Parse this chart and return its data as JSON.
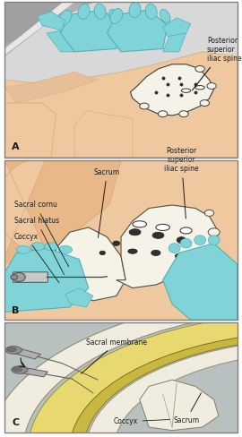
{
  "figsize": [
    2.7,
    4.88
  ],
  "dpi": 100,
  "panel_A": {
    "bg_gray_dark": "#a0a0a0",
    "bg_gray_light": "#d8d8d8",
    "bg_gray_mid": "#c0c0c0",
    "body_color": "#f0c8a0",
    "body_edge": "#d4a878",
    "glove_color": "#80d4d8",
    "glove_edge": "#50b0b8",
    "bone_color": "#f5f2e8",
    "bone_edge": "#404040",
    "dot_color": "#303030",
    "label": "Posterior\nsuperior\niliac spine",
    "panel_label": "A"
  },
  "panel_B": {
    "bg_color": "#f0c8a0",
    "body_edge": "#d4a878",
    "glove_color": "#80d4d8",
    "glove_edge": "#50b0b8",
    "bone_color": "#f5f2e8",
    "bone_edge": "#505040",
    "hole_color": "#404040",
    "labels": [
      "Sacrum",
      "Posterior\nsuperior\niliac spine",
      "Sacral cornu",
      "Sacral hiatus",
      "Coccyx"
    ],
    "panel_label": "B"
  },
  "panel_C": {
    "bg_color": "#b8c0c0",
    "bone_cream": "#f0ece0",
    "yellow_outer": "#e8d870",
    "yellow_inner": "#c8b840",
    "membrane_color": "#e0d8b0",
    "syringe_body": "#b0b0b0",
    "syringe_edge": "#606060",
    "needle_color": "#606060",
    "labels": [
      "Sacrum",
      "Sacral membrane",
      "Coccyx"
    ],
    "panel_label": "C"
  },
  "border_color": "#808080",
  "text_color": "#1a1a1a",
  "font_size": 5.5
}
